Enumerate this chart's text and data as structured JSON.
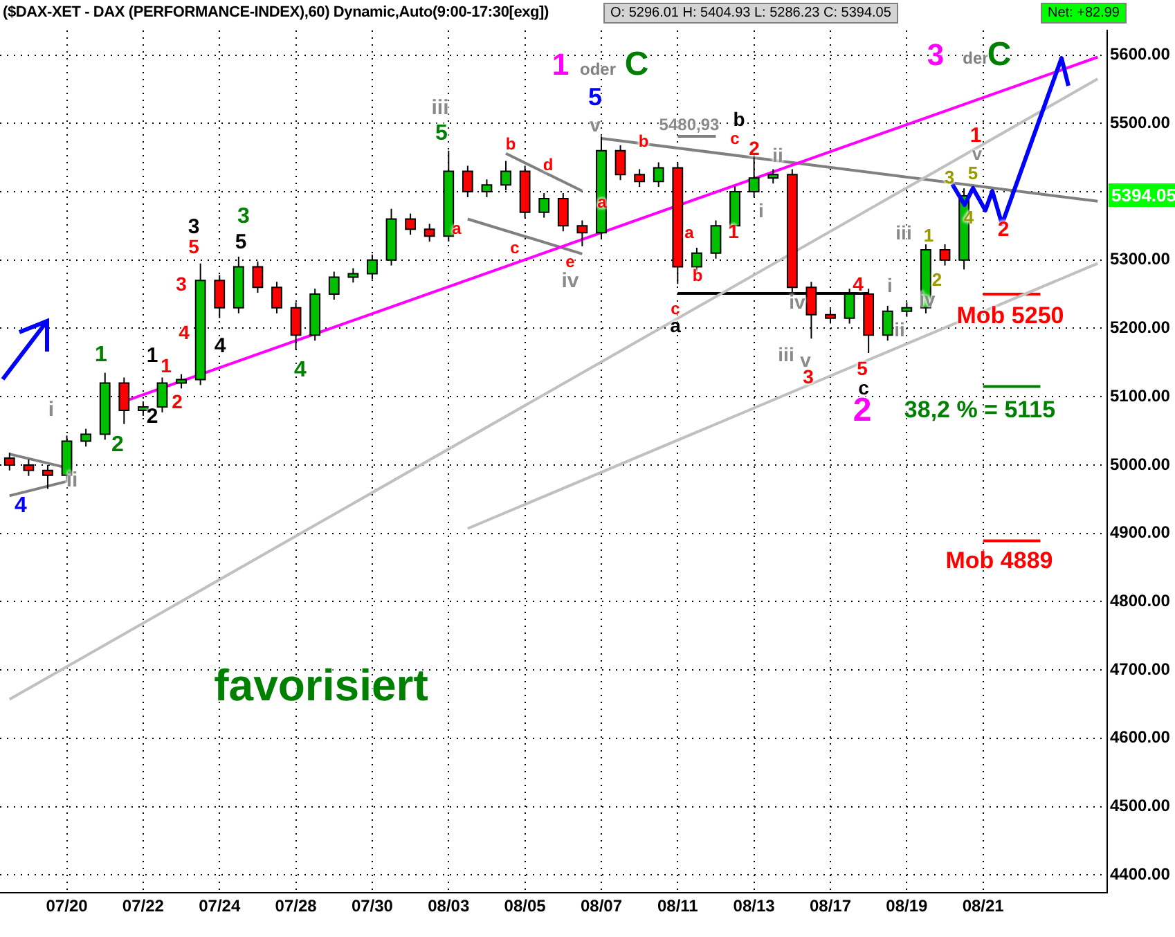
{
  "chart_data": {
    "type": "candlestick",
    "title": "($DAX-XET - DAX (PERFORMANCE-INDEX),60) Dynamic,Auto(9:00-17:30[exg])",
    "categories": [
      null,
      null,
      null,
      "07/20",
      null,
      null,
      null,
      "07/22",
      null,
      null,
      null,
      "07/24",
      null,
      null,
      null,
      "07/28",
      null,
      null,
      null,
      "07/30",
      null,
      null,
      null,
      "08/03",
      null,
      null,
      null,
      "08/05",
      null,
      null,
      null,
      "08/07",
      null,
      null,
      null,
      "08/11",
      null,
      null,
      null,
      "08/13",
      null,
      null,
      null,
      "08/17",
      null,
      null,
      null,
      "08/19",
      null,
      null,
      null,
      "08/21",
      null,
      null,
      null,
      null,
      null,
      null
    ],
    "ohlc": [
      [
        5010,
        5018,
        4992,
        5000
      ],
      [
        5000,
        5008,
        4984,
        4992
      ],
      [
        4992,
        5000,
        4965,
        4985
      ],
      [
        4985,
        5043,
        4977,
        5035
      ],
      [
        5035,
        5053,
        5027,
        5045
      ],
      [
        5045,
        5135,
        5037,
        5120
      ],
      [
        5120,
        5128,
        5060,
        5080
      ],
      [
        5080,
        5093,
        5072,
        5085
      ],
      [
        5085,
        5128,
        5077,
        5120
      ],
      [
        5120,
        5133,
        5112,
        5125
      ],
      [
        5125,
        5295,
        5117,
        5270
      ],
      [
        5270,
        5278,
        5215,
        5230
      ],
      [
        5230,
        5305,
        5222,
        5290
      ],
      [
        5290,
        5298,
        5252,
        5260
      ],
      [
        5260,
        5268,
        5222,
        5230
      ],
      [
        5230,
        5238,
        5168,
        5190
      ],
      [
        5190,
        5258,
        5182,
        5250
      ],
      [
        5250,
        5283,
        5242,
        5275
      ],
      [
        5275,
        5288,
        5267,
        5280
      ],
      [
        5280,
        5308,
        5272,
        5300
      ],
      [
        5300,
        5375,
        5292,
        5360
      ],
      [
        5360,
        5368,
        5337,
        5345
      ],
      [
        5345,
        5353,
        5327,
        5335
      ],
      [
        5335,
        5460,
        5327,
        5430
      ],
      [
        5430,
        5438,
        5392,
        5400
      ],
      [
        5400,
        5418,
        5392,
        5410
      ],
      [
        5410,
        5445,
        5402,
        5430
      ],
      [
        5430,
        5438,
        5362,
        5370
      ],
      [
        5370,
        5398,
        5362,
        5390
      ],
      [
        5390,
        5398,
        5342,
        5350
      ],
      [
        5350,
        5358,
        5320,
        5340
      ],
      [
        5340,
        5481,
        5332,
        5460
      ],
      [
        5460,
        5468,
        5417,
        5425
      ],
      [
        5425,
        5433,
        5407,
        5415
      ],
      [
        5415,
        5443,
        5407,
        5435
      ],
      [
        5435,
        5443,
        5265,
        5290
      ],
      [
        5290,
        5318,
        5282,
        5310
      ],
      [
        5310,
        5358,
        5302,
        5350
      ],
      [
        5350,
        5408,
        5342,
        5400
      ],
      [
        5400,
        5455,
        5392,
        5420
      ],
      [
        5420,
        5433,
        5412,
        5425
      ],
      [
        5425,
        5433,
        5252,
        5260
      ],
      [
        5260,
        5268,
        5185,
        5220
      ],
      [
        5220,
        5228,
        5207,
        5215
      ],
      [
        5215,
        5258,
        5207,
        5250
      ],
      [
        5250,
        5258,
        5164,
        5190
      ],
      [
        5190,
        5233,
        5182,
        5225
      ],
      [
        5225,
        5238,
        5217,
        5230
      ],
      [
        5230,
        5323,
        5222,
        5315
      ],
      [
        5315,
        5323,
        5292,
        5300
      ],
      [
        5300,
        5404.93,
        5286.23,
        5394.05
      ],
      null,
      null,
      null,
      null,
      null,
      null,
      null
    ],
    "colors": [
      "#ff0000",
      "#ff0000",
      "#ff0000",
      "#00c000",
      "#00c000",
      "#00c000",
      "#ff0000",
      "#00c000",
      "#00c000",
      "#00c000",
      "#00c000",
      "#ff0000",
      "#00c000",
      "#ff0000",
      "#ff0000",
      "#ff0000",
      "#00c000",
      "#00c000",
      "#00c000",
      "#00c000",
      "#00c000",
      "#ff0000",
      "#ff0000",
      "#00c000",
      "#ff0000",
      "#00c000",
      "#00c000",
      "#ff0000",
      "#00c000",
      "#ff0000",
      "#ff0000",
      "#00c000",
      "#ff0000",
      "#ff0000",
      "#00c000",
      "#ff0000",
      "#00c000",
      "#00c000",
      "#00c000",
      "#00c000",
      "#00c000",
      "#ff0000",
      "#ff0000",
      "#ff0000",
      "#00c000",
      "#ff0000",
      "#00c000",
      "#00c000",
      "#00c000",
      "#ff0000",
      "#00c000",
      null,
      null,
      null,
      null,
      null,
      null,
      null
    ],
    "series": [
      {
        "type": "line",
        "color": "#ff00ff",
        "values": [
          null,
          null,
          null,
          null,
          null,
          null,
          5093,
          null,
          null,
          null,
          null,
          null,
          null,
          null,
          null,
          null,
          null,
          null,
          null,
          null,
          null,
          null,
          null,
          null,
          null,
          null,
          null,
          null,
          null,
          null,
          null,
          null,
          null,
          null,
          null,
          null,
          null,
          null,
          null,
          null,
          null,
          null,
          null,
          null,
          null,
          null,
          null,
          null,
          null,
          null,
          null,
          null,
          null,
          null,
          null,
          null,
          null,
          5597
        ]
      },
      {
        "type": "line",
        "color": "#c0c0c0",
        "values": [
          4657,
          null,
          null,
          null,
          null,
          null,
          null,
          null,
          null,
          null,
          null,
          null,
          null,
          null,
          null,
          null,
          null,
          null,
          null,
          null,
          null,
          null,
          null,
          null,
          null,
          null,
          null,
          null,
          null,
          null,
          null,
          null,
          null,
          null,
          null,
          null,
          null,
          null,
          null,
          null,
          null,
          null,
          null,
          null,
          null,
          null,
          null,
          null,
          null,
          null,
          null,
          null,
          null,
          null,
          null,
          null,
          null,
          5565
        ]
      },
      {
        "type": "line",
        "color": "#c0c0c0",
        "values": [
          null,
          null,
          null,
          null,
          null,
          null,
          null,
          null,
          null,
          null,
          null,
          null,
          null,
          null,
          null,
          null,
          null,
          null,
          null,
          null,
          null,
          null,
          null,
          null,
          4907,
          null,
          null,
          null,
          null,
          null,
          null,
          null,
          null,
          null,
          null,
          null,
          null,
          null,
          null,
          null,
          null,
          null,
          null,
          null,
          null,
          null,
          null,
          null,
          null,
          null,
          null,
          null,
          null,
          null,
          null,
          null,
          null,
          5295
        ]
      },
      {
        "type": "line",
        "color": "#808080",
        "values": [
          null,
          null,
          null,
          null,
          null,
          null,
          null,
          null,
          null,
          null,
          null,
          null,
          null,
          null,
          null,
          null,
          null,
          null,
          null,
          null,
          null,
          null,
          null,
          null,
          null,
          null,
          null,
          null,
          null,
          null,
          null,
          5478,
          null,
          null,
          null,
          null,
          null,
          null,
          null,
          null,
          null,
          null,
          null,
          null,
          null,
          null,
          null,
          null,
          null,
          null,
          null,
          null,
          null,
          null,
          null,
          null,
          null,
          5386
        ]
      },
      {
        "type": "line",
        "color": "#808080",
        "values": [
          null,
          null,
          null,
          null,
          null,
          null,
          null,
          null,
          null,
          null,
          null,
          null,
          null,
          null,
          null,
          null,
          null,
          null,
          null,
          null,
          null,
          null,
          null,
          null,
          5360,
          null,
          null,
          null,
          null,
          null,
          5309,
          null,
          null,
          null,
          null,
          null,
          null,
          null,
          null,
          null,
          null,
          null,
          null,
          null,
          null,
          null,
          null,
          null,
          null,
          null,
          null,
          null,
          null,
          null,
          null,
          null,
          null,
          null
        ]
      },
      {
        "type": "line",
        "color": "#808080",
        "values": [
          null,
          null,
          null,
          null,
          null,
          null,
          null,
          null,
          null,
          null,
          null,
          null,
          null,
          null,
          null,
          null,
          null,
          null,
          null,
          null,
          null,
          null,
          null,
          null,
          null,
          null,
          5456,
          null,
          null,
          null,
          5401,
          null,
          null,
          null,
          null,
          null,
          null,
          null,
          null,
          null,
          null,
          null,
          null,
          null,
          null,
          null,
          null,
          null,
          null,
          null,
          null,
          null,
          null,
          null,
          null,
          null,
          null,
          null
        ]
      },
      {
        "type": "line",
        "color": "#808080",
        "values": [
          5016,
          null,
          null,
          4996,
          null,
          null,
          null,
          null,
          null,
          null,
          null,
          null,
          null,
          null,
          null,
          null,
          null,
          null,
          null,
          null,
          null,
          null,
          null,
          null,
          null,
          null,
          null,
          null,
          null,
          null,
          null,
          null,
          null,
          null,
          null,
          null,
          null,
          null,
          null,
          null,
          null,
          null,
          null,
          null,
          null,
          null,
          null,
          null,
          null,
          null,
          null,
          null,
          null,
          null,
          null,
          null,
          null,
          null
        ]
      },
      {
        "type": "line",
        "color": "#808080",
        "values": [
          4955,
          null,
          null,
          4976,
          null,
          null,
          null,
          null,
          null,
          null,
          null,
          null,
          null,
          null,
          null,
          null,
          null,
          null,
          null,
          null,
          null,
          null,
          null,
          null,
          null,
          null,
          null,
          null,
          null,
          null,
          null,
          null,
          null,
          null,
          null,
          null,
          null,
          null,
          null,
          null,
          null,
          null,
          null,
          null,
          null,
          null,
          null,
          null,
          null,
          null,
          null,
          null,
          null,
          null,
          null,
          null,
          null,
          null
        ]
      },
      {
        "type": "line",
        "color": "#000000",
        "values": [
          null,
          null,
          null,
          null,
          null,
          null,
          null,
          null,
          null,
          null,
          null,
          null,
          null,
          null,
          null,
          null,
          null,
          null,
          null,
          null,
          null,
          null,
          null,
          null,
          null,
          null,
          null,
          null,
          null,
          null,
          null,
          null,
          null,
          null,
          null,
          5251,
          null,
          null,
          null,
          null,
          null,
          null,
          null,
          null,
          null,
          5251,
          null,
          null,
          null,
          null,
          null,
          null,
          null,
          null,
          null,
          null,
          null,
          null
        ]
      },
      {
        "type": "line",
        "color": "#808080",
        "values": [
          null,
          null,
          null,
          null,
          null,
          null,
          null,
          null,
          null,
          null,
          null,
          null,
          null,
          null,
          null,
          null,
          null,
          null,
          null,
          null,
          null,
          null,
          null,
          null,
          null,
          null,
          null,
          null,
          null,
          null,
          null,
          null,
          null,
          null,
          null,
          5481,
          null,
          5481,
          null,
          null,
          null,
          null,
          null,
          null,
          null,
          null,
          null,
          null,
          null,
          null,
          null,
          null,
          null,
          null,
          null,
          null,
          null,
          null
        ]
      },
      {
        "type": "line",
        "color": "#ff0000",
        "values": [
          null,
          null,
          null,
          null,
          null,
          null,
          null,
          null,
          null,
          null,
          null,
          null,
          null,
          null,
          null,
          null,
          null,
          null,
          null,
          null,
          null,
          null,
          null,
          null,
          null,
          null,
          null,
          null,
          null,
          null,
          null,
          null,
          null,
          null,
          null,
          null,
          null,
          null,
          null,
          null,
          null,
          null,
          null,
          null,
          null,
          null,
          null,
          null,
          null,
          null,
          null,
          5250,
          null,
          null,
          5250,
          null,
          null,
          null
        ]
      },
      {
        "type": "line",
        "color": "#008000",
        "values": [
          null,
          null,
          null,
          null,
          null,
          null,
          null,
          null,
          null,
          null,
          null,
          null,
          null,
          null,
          null,
          null,
          null,
          null,
          null,
          null,
          null,
          null,
          null,
          null,
          null,
          null,
          null,
          null,
          null,
          null,
          null,
          null,
          null,
          null,
          null,
          null,
          null,
          null,
          null,
          null,
          null,
          null,
          null,
          null,
          null,
          null,
          null,
          null,
          null,
          null,
          null,
          5115,
          null,
          null,
          5115,
          null,
          null,
          null
        ]
      },
      {
        "type": "line",
        "color": "#ff0000",
        "values": [
          null,
          null,
          null,
          null,
          null,
          null,
          null,
          null,
          null,
          null,
          null,
          null,
          null,
          null,
          null,
          null,
          null,
          null,
          null,
          null,
          null,
          null,
          null,
          null,
          null,
          null,
          null,
          null,
          null,
          null,
          null,
          null,
          null,
          null,
          null,
          null,
          null,
          null,
          null,
          null,
          null,
          null,
          null,
          null,
          null,
          null,
          null,
          null,
          null,
          null,
          null,
          4889,
          null,
          null,
          4889,
          null,
          null,
          null
        ]
      }
    ],
    "ylim": [
      4374,
      5636
    ],
    "yticks": [
      {
        "value": 4400,
        "label": "4400.00"
      },
      {
        "value": 4500,
        "label": "4500.00"
      },
      {
        "value": 4600,
        "label": "4600.00"
      },
      {
        "value": 4700,
        "label": "4700.00"
      },
      {
        "value": 4800,
        "label": "4800.00"
      },
      {
        "value": 4900,
        "label": "4900.00"
      },
      {
        "value": 5000,
        "label": "5000.00"
      },
      {
        "value": 5100,
        "label": "5100.00"
      },
      {
        "value": 5200,
        "label": "5200.00"
      },
      {
        "value": 5300,
        "label": "5300.00"
      },
      {
        "value": 5400,
        "label": null
      },
      {
        "value": 5500,
        "label": "5500.00"
      },
      {
        "value": 5600,
        "label": "5600.00"
      }
    ],
    "grid": true,
    "annotations": [
      "O: 5296.01   H: 5404.93   L: 5286.23   C: 5394.05",
      "Net: +82.99",
      "favorisiert",
      "5394.05",
      "4",
      "ii",
      "i",
      "1",
      "2",
      "1",
      "2",
      "1",
      "2",
      "3",
      "4",
      "5",
      "3",
      "4",
      "5",
      "3",
      "4",
      "5",
      "iii",
      "a",
      "b",
      "c",
      "d",
      "e",
      "iv",
      "5",
      "v",
      "a",
      "b",
      "5480,93",
      "b",
      "c",
      "2",
      "ii",
      "1",
      "i",
      "a",
      "b",
      "c",
      "a",
      "iv",
      "iii",
      "v",
      "3",
      "4",
      "5",
      "c",
      "2",
      "i",
      "ii",
      "iii",
      "iv",
      "1",
      "2",
      "3",
      "5",
      "4",
      "v",
      "1",
      "2",
      "Mob 5250",
      "38,2 % = 5115",
      "Mob 4889",
      "1",
      "oder",
      "C",
      "3",
      "der",
      "C"
    ]
  }
}
